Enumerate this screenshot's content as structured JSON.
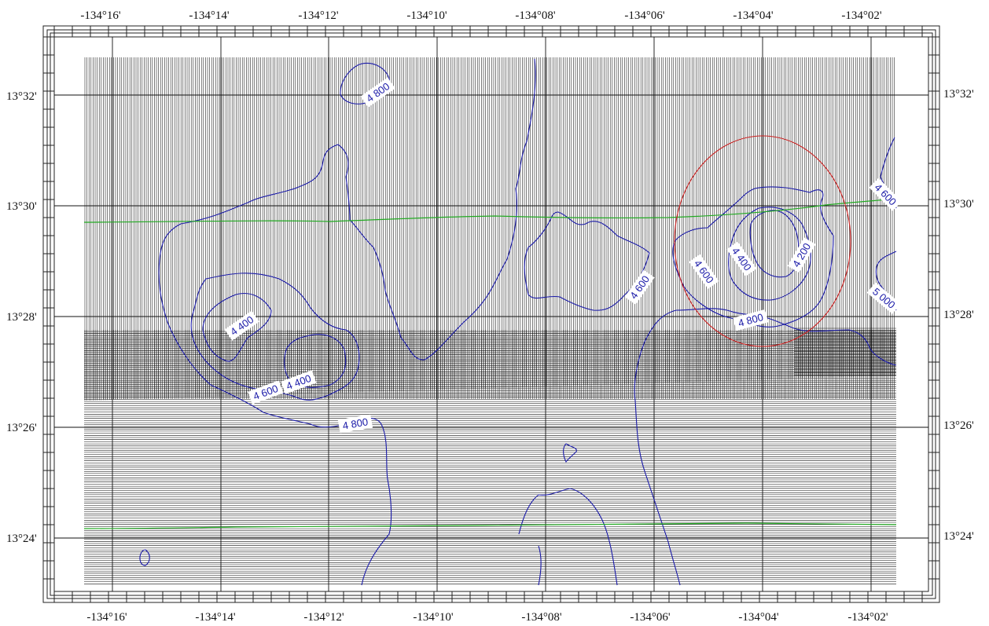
{
  "map": {
    "lon_labels": [
      "-134°16'",
      "-134°14'",
      "-134°12'",
      "-134°10'",
      "-134°08'",
      "-134°06'",
      "-134°04'",
      "-134°02'"
    ],
    "lat_labels": [
      "13°32'",
      "13°30'",
      "13°28'",
      "13°26'",
      "13°24'"
    ],
    "contour_labels": [
      {
        "id": "c1",
        "text": "4 800"
      },
      {
        "id": "c2",
        "text": "4 400"
      },
      {
        "id": "c3",
        "text": "4 400"
      },
      {
        "id": "c4",
        "text": "4 600"
      },
      {
        "id": "c5",
        "text": "4 800"
      },
      {
        "id": "c6",
        "text": "4 600"
      },
      {
        "id": "c7",
        "text": "4 600"
      },
      {
        "id": "c8",
        "text": "4 400"
      },
      {
        "id": "c9",
        "text": "4 200"
      },
      {
        "id": "c10",
        "text": "4 800"
      },
      {
        "id": "c11",
        "text": "4 600"
      },
      {
        "id": "c12",
        "text": "5 000"
      }
    ],
    "colors": {
      "contour": "#1a1aa8",
      "track": "#22aa22",
      "highlight_circle": "#cc2222",
      "survey_lines": "#111111",
      "background": "#ffffff"
    }
  }
}
